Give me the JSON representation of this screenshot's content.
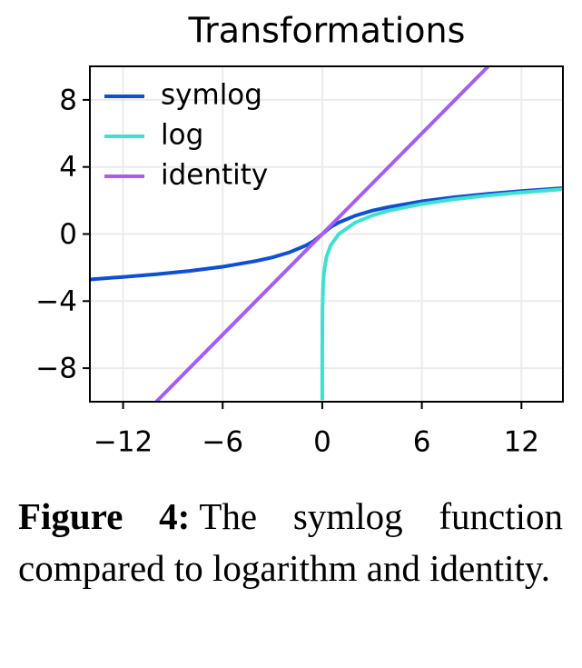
{
  "chart_data": {
    "type": "line",
    "title": "Transformations",
    "xlim": [
      -14,
      14.5
    ],
    "ylim": [
      -10,
      10
    ],
    "xticks": [
      {
        "value": -12,
        "label": "−12"
      },
      {
        "value": -6,
        "label": "−6"
      },
      0,
      6,
      12
    ],
    "yticks": [
      {
        "value": -8,
        "label": "−8"
      },
      {
        "value": -4,
        "label": "−4"
      },
      0,
      4,
      8
    ],
    "grid": true,
    "legend": "upper-left",
    "series": [
      {
        "name": "symlog",
        "color": "#0f4fd2",
        "x": [
          -14,
          -12,
          -10,
          -8,
          -6,
          -4,
          -3,
          -2,
          -1,
          -0.5,
          0,
          0.5,
          1,
          2,
          3,
          4,
          6,
          8,
          10,
          12,
          14.5
        ],
        "values": [
          -2.71,
          -2.56,
          -2.4,
          -2.2,
          -1.95,
          -1.61,
          -1.39,
          -1.1,
          -0.69,
          -0.41,
          0,
          0.41,
          0.69,
          1.1,
          1.39,
          1.61,
          1.95,
          2.2,
          2.4,
          2.56,
          2.74
        ]
      },
      {
        "name": "log",
        "color": "#3ee0cf",
        "x": [
          5e-05,
          0.001,
          0.01,
          0.05,
          0.1,
          0.25,
          0.5,
          1,
          2,
          3,
          4,
          6,
          8,
          10,
          12,
          14.5
        ],
        "values": [
          -9.9,
          -6.91,
          -4.61,
          -3.0,
          -2.3,
          -1.39,
          -0.69,
          0,
          0.69,
          1.1,
          1.39,
          1.79,
          2.08,
          2.3,
          2.48,
          2.67
        ]
      },
      {
        "name": "identity",
        "color": "#a45ef0",
        "x": [
          -10,
          10
        ],
        "values": [
          -10,
          10
        ]
      }
    ]
  },
  "caption": {
    "label": "Figure 4:",
    "text": "The symlog function compared to logarithm and identity."
  }
}
